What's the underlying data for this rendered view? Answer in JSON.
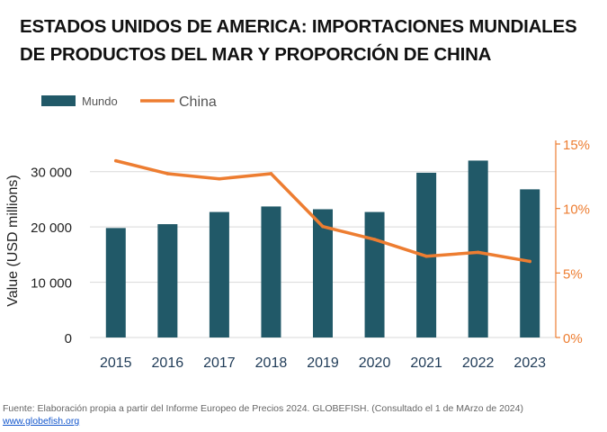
{
  "title_lines": [
    "ESTADOS UNIDOS DE AMERICA: IMPORTACIONES MUNDIALES",
    "DE PRODUCTOS DEL MAR Y PROPORCIÓN DE CHINA"
  ],
  "footer": {
    "text": "Fuente: Elaboración propia a partir del Informe Europeo de Precios 2024. GLOBEFISH. (Consultado el 1 de MArzo de 2024)",
    "link": "www.globefish.org"
  },
  "colors": {
    "bars": "#215968",
    "line": "#ED7D31",
    "axis_right": "#ED7D31",
    "text": "#222222"
  },
  "chart_data": {
    "type": "bar",
    "categories": [
      "2015",
      "2016",
      "2017",
      "2018",
      "2019",
      "2020",
      "2021",
      "2022",
      "2023"
    ],
    "series": [
      {
        "name": "Mundo",
        "type": "bar",
        "axis": "left",
        "values": [
          19800,
          20500,
          22700,
          23700,
          23200,
          22700,
          29800,
          32000,
          26800
        ]
      },
      {
        "name": "China",
        "type": "line",
        "axis": "right",
        "unit": "%",
        "values": [
          13.7,
          12.7,
          12.3,
          12.7,
          8.6,
          7.6,
          6.3,
          6.6,
          5.9
        ]
      }
    ],
    "ylabel": "Value (USD millions)",
    "ylim": [
      0,
      35000
    ],
    "yticks": [
      0,
      10000,
      20000,
      30000
    ],
    "ytick_labels": [
      "0",
      "10 000",
      "20 000",
      "30 000"
    ],
    "y2lim": [
      0,
      15
    ],
    "y2ticks": [
      0,
      5,
      10,
      15
    ],
    "y2tick_labels": [
      "0%",
      "5%",
      "10%",
      "15%"
    ],
    "legend": "top-left",
    "grid": true
  }
}
